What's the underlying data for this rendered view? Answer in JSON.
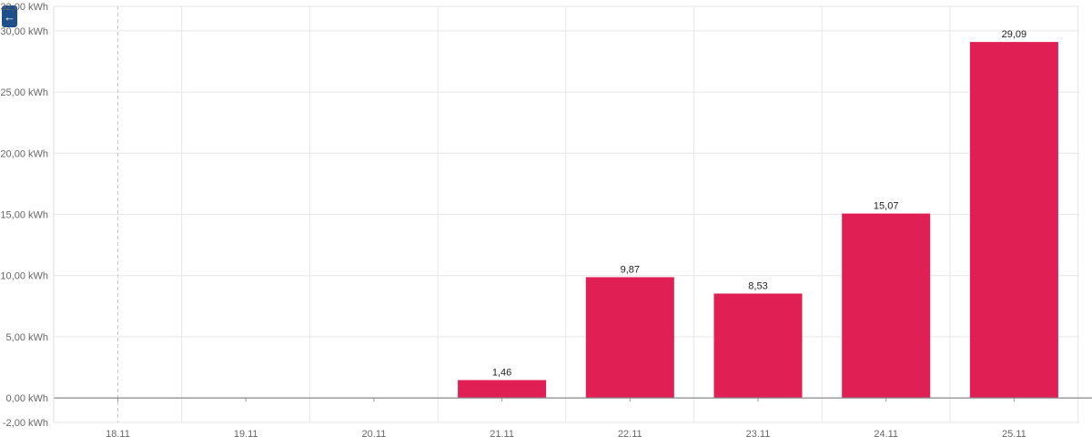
{
  "toolbar": {
    "back_icon": "arrow-left-icon"
  },
  "colors": {
    "bar": "#e01f54",
    "grid": "#e6e6e6",
    "axis": "#999999"
  },
  "chart_data": {
    "type": "bar",
    "categories": [
      "18.11",
      "19.11",
      "20.11",
      "21.11",
      "22.11",
      "23.11",
      "24.11",
      "25.11"
    ],
    "values": [
      null,
      null,
      null,
      1.46,
      9.87,
      8.53,
      15.07,
      29.09
    ],
    "value_labels": [
      "",
      "",
      "",
      "1,46",
      "9,87",
      "8,53",
      "15,07",
      "29,09"
    ],
    "y_ticks": [
      -2,
      0,
      5,
      10,
      15,
      20,
      25,
      30,
      32
    ],
    "y_tick_labels": [
      "-2,00 kWh",
      "0,00 kWh",
      "5,00 kWh",
      "10,00 kWh",
      "15,00 kWh",
      "20,00 kWh",
      "25,00 kWh",
      "30,00 kWh",
      "32,00 kWh"
    ],
    "ylim": [
      -2,
      32
    ],
    "grid": true,
    "legend": "none"
  }
}
